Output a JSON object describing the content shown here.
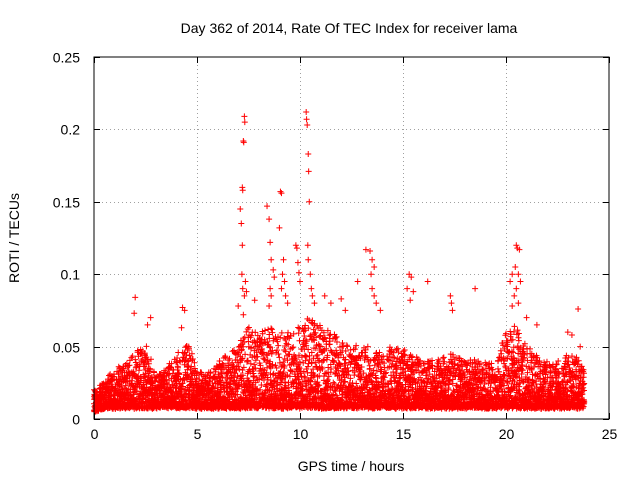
{
  "chart_data": {
    "type": "scatter",
    "title": "Day 362 of 2014, Rate Of TEC Index for receiver lama",
    "xlabel": "GPS time / hours",
    "ylabel": "ROTI / TECUs",
    "xlim": [
      0,
      25
    ],
    "ylim": [
      0,
      0.25
    ],
    "xticks": [
      0,
      5,
      10,
      15,
      20,
      25
    ],
    "xtick_labels": [
      "0",
      "5",
      "10",
      "15",
      "20",
      "25"
    ],
    "yticks": [
      0,
      0.05,
      0.1,
      0.15,
      0.2,
      0.25
    ],
    "ytick_labels": [
      "0",
      "0.05",
      "0.1",
      "0.15",
      "0.2",
      "0.25"
    ],
    "grid": true,
    "marker": "+",
    "color": "#ff0000",
    "series": [
      {
        "name": "ROTI",
        "envelope": {
          "hours": [
            0,
            0.5,
            1,
            1.5,
            2,
            2.5,
            3,
            3.5,
            4,
            4.5,
            5,
            5.5,
            6,
            6.5,
            7,
            7.5,
            8,
            8.5,
            9,
            9.5,
            10,
            10.5,
            11,
            11.5,
            12,
            12.5,
            13,
            13.5,
            14,
            14.5,
            15,
            15.5,
            16,
            16.5,
            17,
            17.5,
            18,
            18.5,
            19,
            19.5,
            20,
            20.5,
            21,
            21.5,
            22,
            22.5,
            23,
            23.5,
            23.8
          ],
          "typical_max": [
            0.02,
            0.025,
            0.035,
            0.04,
            0.045,
            0.055,
            0.03,
            0.035,
            0.045,
            0.055,
            0.035,
            0.03,
            0.04,
            0.045,
            0.05,
            0.065,
            0.06,
            0.065,
            0.06,
            0.06,
            0.065,
            0.07,
            0.065,
            0.06,
            0.055,
            0.05,
            0.05,
            0.05,
            0.045,
            0.05,
            0.05,
            0.045,
            0.04,
            0.04,
            0.045,
            0.045,
            0.04,
            0.04,
            0.04,
            0.04,
            0.06,
            0.065,
            0.05,
            0.045,
            0.04,
            0.04,
            0.045,
            0.045,
            0.035
          ],
          "base_min": [
            0.005,
            0.008,
            0.008,
            0.008,
            0.008,
            0.008,
            0.008,
            0.008,
            0.008,
            0.008,
            0.008,
            0.008,
            0.008,
            0.008,
            0.008,
            0.008,
            0.008,
            0.008,
            0.008,
            0.008,
            0.008,
            0.008,
            0.008,
            0.008,
            0.008,
            0.008,
            0.008,
            0.008,
            0.008,
            0.008,
            0.008,
            0.008,
            0.008,
            0.008,
            0.008,
            0.008,
            0.008,
            0.008,
            0.008,
            0.008,
            0.008,
            0.008,
            0.008,
            0.008,
            0.008,
            0.008,
            0.008,
            0.008,
            0.008
          ]
        },
        "outliers": [
          [
            2.0,
            0.084
          ],
          [
            1.95,
            0.073
          ],
          [
            2.6,
            0.065
          ],
          [
            2.75,
            0.07
          ],
          [
            4.3,
            0.077
          ],
          [
            4.4,
            0.075
          ],
          [
            4.25,
            0.063
          ],
          [
            7.0,
            0.078
          ],
          [
            7.1,
            0.145
          ],
          [
            7.15,
            0.135
          ],
          [
            7.2,
            0.16
          ],
          [
            7.22,
            0.158
          ],
          [
            7.25,
            0.192
          ],
          [
            7.27,
            0.191
          ],
          [
            7.3,
            0.209
          ],
          [
            7.32,
            0.205
          ],
          [
            7.2,
            0.12
          ],
          [
            7.18,
            0.1
          ],
          [
            7.22,
            0.09
          ],
          [
            7.3,
            0.085
          ],
          [
            7.35,
            0.095
          ],
          [
            7.4,
            0.088
          ],
          [
            7.25,
            0.072
          ],
          [
            7.8,
            0.082
          ],
          [
            8.4,
            0.147
          ],
          [
            8.5,
            0.138
          ],
          [
            8.55,
            0.122
          ],
          [
            8.6,
            0.11
          ],
          [
            8.7,
            0.103
          ],
          [
            8.75,
            0.098
          ],
          [
            8.55,
            0.09
          ],
          [
            8.6,
            0.085
          ],
          [
            8.5,
            0.078
          ],
          [
            9.0,
            0.132
          ],
          [
            9.05,
            0.157
          ],
          [
            9.1,
            0.156
          ],
          [
            9.2,
            0.11
          ],
          [
            9.15,
            0.1
          ],
          [
            9.25,
            0.095
          ],
          [
            9.1,
            0.09
          ],
          [
            9.3,
            0.085
          ],
          [
            9.4,
            0.08
          ],
          [
            9.8,
            0.12
          ],
          [
            9.85,
            0.118
          ],
          [
            9.9,
            0.108
          ],
          [
            9.95,
            0.101
          ],
          [
            10.0,
            0.095
          ],
          [
            10.3,
            0.212
          ],
          [
            10.32,
            0.207
          ],
          [
            10.35,
            0.203
          ],
          [
            10.4,
            0.183
          ],
          [
            10.42,
            0.171
          ],
          [
            10.45,
            0.15
          ],
          [
            10.38,
            0.12
          ],
          [
            10.4,
            0.11
          ],
          [
            10.5,
            0.1
          ],
          [
            10.55,
            0.09
          ],
          [
            10.6,
            0.085
          ],
          [
            10.7,
            0.08
          ],
          [
            11.2,
            0.085
          ],
          [
            11.5,
            0.08
          ],
          [
            12.0,
            0.083
          ],
          [
            12.2,
            0.075
          ],
          [
            12.8,
            0.095
          ],
          [
            13.2,
            0.117
          ],
          [
            13.4,
            0.116
          ],
          [
            13.5,
            0.11
          ],
          [
            13.6,
            0.105
          ],
          [
            13.45,
            0.1
          ],
          [
            13.5,
            0.09
          ],
          [
            13.6,
            0.085
          ],
          [
            13.7,
            0.08
          ],
          [
            13.9,
            0.075
          ],
          [
            15.2,
            0.09
          ],
          [
            15.3,
            0.1
          ],
          [
            15.4,
            0.098
          ],
          [
            15.5,
            0.088
          ],
          [
            15.35,
            0.082
          ],
          [
            16.2,
            0.095
          ],
          [
            17.3,
            0.085
          ],
          [
            17.35,
            0.08
          ],
          [
            17.4,
            0.075
          ],
          [
            18.5,
            0.09
          ],
          [
            20.2,
            0.095
          ],
          [
            20.3,
            0.1
          ],
          [
            20.5,
            0.12
          ],
          [
            20.55,
            0.118
          ],
          [
            20.65,
            0.117
          ],
          [
            20.45,
            0.105
          ],
          [
            20.6,
            0.1
          ],
          [
            20.7,
            0.095
          ],
          [
            20.5,
            0.09
          ],
          [
            20.4,
            0.085
          ],
          [
            20.6,
            0.08
          ],
          [
            20.3,
            0.078
          ],
          [
            21.0,
            0.07
          ],
          [
            21.5,
            0.065
          ],
          [
            23.0,
            0.06
          ],
          [
            23.2,
            0.058
          ],
          [
            23.5,
            0.076
          ],
          [
            23.6,
            0.05
          ]
        ]
      }
    ]
  }
}
